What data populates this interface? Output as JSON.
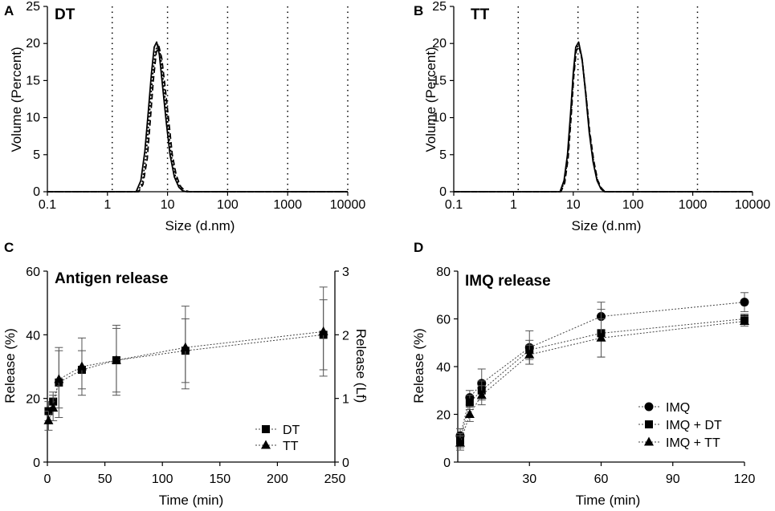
{
  "figure": {
    "panels": [
      {
        "id": "A",
        "letter": "A",
        "title": "DT"
      },
      {
        "id": "B",
        "letter": "B",
        "title": "TT"
      },
      {
        "id": "C",
        "letter": "C",
        "title": "Antigen release"
      },
      {
        "id": "D",
        "letter": "D",
        "title": "IMQ release"
      }
    ]
  },
  "chart_data": [
    {
      "panel": "A",
      "type": "line",
      "title": "DT",
      "xlabel": "Size (d.nm)",
      "ylabel": "Volume (Percent)",
      "xscale": "log",
      "xlim": [
        0.1,
        10000
      ],
      "ylim": [
        0,
        25
      ],
      "xticks": [
        0.1,
        1,
        10,
        100,
        1000,
        10000
      ],
      "xtick_labels": [
        "0.1",
        "1",
        "10",
        "100",
        "1000",
        "10000"
      ],
      "yticks": [
        0,
        5,
        10,
        15,
        20,
        25
      ],
      "ytick_labels": [
        "0",
        "5",
        "10",
        "15",
        "20",
        "25"
      ],
      "reference_lines_x": [
        1.2,
        10,
        100,
        1000,
        10000
      ],
      "series": [
        {
          "name": "DT (solid)",
          "style": "solid",
          "x": [
            0.1,
            3.0,
            3.6,
            4.2,
            4.8,
            5.4,
            6.0,
            6.6,
            7.3,
            8.2,
            9.5,
            11.0,
            13.0,
            15.5,
            18.0,
            21.0,
            10000
          ],
          "y": [
            0,
            0,
            1.5,
            5.5,
            11.0,
            16.0,
            19.5,
            20.2,
            18.5,
            14.5,
            9.5,
            5.0,
            2.0,
            0.6,
            0.1,
            0,
            0
          ]
        },
        {
          "name": "DT (dashed)",
          "style": "dashed",
          "x": [
            0.1,
            3.3,
            3.9,
            4.6,
            5.2,
            5.8,
            6.5,
            7.2,
            8.0,
            9.0,
            10.5,
            12.0,
            14.0,
            16.5,
            19.0,
            23.0,
            10000
          ],
          "y": [
            0,
            0,
            1.0,
            4.5,
            10.0,
            15.0,
            18.8,
            19.6,
            18.0,
            14.5,
            9.5,
            5.0,
            2.2,
            0.7,
            0.2,
            0,
            0
          ]
        },
        {
          "name": "DT (dotted)",
          "style": "dotted",
          "x": [
            0.1,
            3.2,
            3.8,
            4.4,
            5.0,
            5.6,
            6.3,
            7.0,
            7.7,
            8.6,
            10.0,
            11.5,
            13.5,
            16.0,
            18.5,
            22.0,
            10000
          ],
          "y": [
            0,
            0,
            1.2,
            5.0,
            10.5,
            15.5,
            19.0,
            19.9,
            18.2,
            14.5,
            9.5,
            5.0,
            2.1,
            0.6,
            0.1,
            0,
            0
          ]
        }
      ]
    },
    {
      "panel": "B",
      "type": "line",
      "title": "TT",
      "xlabel": "Size (d.nm)",
      "ylabel": "Volume (Percent)",
      "xscale": "log",
      "xlim": [
        0.1,
        10000
      ],
      "ylim": [
        0,
        25
      ],
      "xticks": [
        0.1,
        1,
        10,
        100,
        1000,
        10000
      ],
      "xtick_labels": [
        "0.1",
        "1",
        "10",
        "100",
        "1000",
        "10000"
      ],
      "yticks": [
        0,
        5,
        10,
        15,
        20,
        25
      ],
      "ytick_labels": [
        "0",
        "5",
        "10",
        "15",
        "20",
        "25"
      ],
      "reference_lines_x": [
        1.2,
        12,
        120,
        1200
      ],
      "series": [
        {
          "name": "TT (solid)",
          "style": "solid",
          "x": [
            0.1,
            6.0,
            7.0,
            8.0,
            9.0,
            10.0,
            11.0,
            12.3,
            14.0,
            16.0,
            18.5,
            21.5,
            25.0,
            29.0,
            33.0,
            10000
          ],
          "y": [
            0,
            0,
            1.5,
            5.0,
            10.5,
            16.0,
            19.5,
            20.2,
            18.0,
            13.5,
            8.0,
            4.0,
            1.5,
            0.4,
            0,
            0
          ]
        },
        {
          "name": "TT (dashed)",
          "style": "dashed",
          "x": [
            0.1,
            6.2,
            7.2,
            8.2,
            9.2,
            10.2,
            11.2,
            12.5,
            14.2,
            16.2,
            18.8,
            22.0,
            25.5,
            29.5,
            34.0,
            10000
          ],
          "y": [
            0,
            0,
            1.2,
            4.5,
            10.0,
            15.5,
            19.0,
            19.6,
            17.6,
            13.4,
            8.2,
            4.2,
            1.6,
            0.5,
            0,
            0
          ]
        },
        {
          "name": "TT (dotted)",
          "style": "dotted",
          "x": [
            0.1,
            6.1,
            7.1,
            8.1,
            9.1,
            10.1,
            11.1,
            12.4,
            14.1,
            16.1,
            18.6,
            21.8,
            25.2,
            29.2,
            33.5,
            10000
          ],
          "y": [
            0,
            0,
            1.3,
            4.8,
            10.2,
            15.8,
            19.2,
            19.9,
            17.8,
            13.4,
            8.1,
            4.1,
            1.5,
            0.4,
            0,
            0
          ]
        }
      ]
    },
    {
      "panel": "C",
      "type": "line",
      "title": "Antigen release",
      "xlabel": "Time (min)",
      "ylabel": "Release (%)",
      "y2label": "Release (Lf)",
      "xlim": [
        0,
        250
      ],
      "ylim": [
        0,
        60
      ],
      "y2lim": [
        0,
        3
      ],
      "xticks": [
        0,
        50,
        100,
        150,
        200,
        250
      ],
      "xtick_labels": [
        "0",
        "50",
        "100",
        "150",
        "200",
        "250"
      ],
      "yticks": [
        0,
        20,
        40,
        60
      ],
      "ytick_labels": [
        "0",
        "20",
        "40",
        "60"
      ],
      "y2ticks": [
        0,
        1,
        2,
        3
      ],
      "y2tick_labels": [
        "0",
        "1",
        "2",
        "3"
      ],
      "legend_position": "bottom-right",
      "series": [
        {
          "name": "DT",
          "marker": "square",
          "x": [
            1,
            5,
            10,
            30,
            60,
            120,
            240
          ],
          "y": [
            16,
            19,
            25,
            29,
            32,
            35,
            40
          ],
          "err": [
            3,
            3,
            11,
            6,
            10,
            10,
            11
          ]
        },
        {
          "name": "TT",
          "marker": "triangle",
          "x": [
            1,
            5,
            10,
            30,
            60,
            120,
            240
          ],
          "y": [
            13,
            17,
            26,
            30,
            32,
            36,
            41
          ],
          "err": [
            3,
            4,
            9,
            9,
            11,
            13,
            14
          ]
        }
      ]
    },
    {
      "panel": "D",
      "type": "line",
      "title": "IMQ release",
      "xlabel": "Time (min)",
      "ylabel": "Release (%)",
      "xlim": [
        0,
        120
      ],
      "ylim": [
        0,
        80
      ],
      "xticks": [
        30,
        60,
        90,
        120
      ],
      "xtick_labels": [
        "30",
        "60",
        "90",
        "120"
      ],
      "yticks": [
        0,
        20,
        40,
        60,
        80
      ],
      "ytick_labels": [
        "0",
        "20",
        "40",
        "60",
        "80"
      ],
      "legend_position": "bottom-right",
      "series": [
        {
          "name": "IMQ",
          "marker": "circle",
          "x": [
            1,
            5,
            10,
            30,
            60,
            120
          ],
          "y": [
            11,
            27,
            33,
            48,
            61,
            67
          ],
          "err": [
            3,
            3,
            6,
            7,
            6,
            4
          ]
        },
        {
          "name": "IMQ + DT",
          "marker": "square",
          "x": [
            1,
            5,
            10,
            30,
            60,
            120
          ],
          "y": [
            9,
            25,
            30,
            47,
            54,
            60
          ],
          "err": [
            3,
            3,
            4,
            4,
            10,
            2
          ]
        },
        {
          "name": "IMQ + TT",
          "marker": "triangle",
          "x": [
            1,
            5,
            10,
            30,
            60,
            120
          ],
          "y": [
            8,
            20,
            28,
            45,
            52,
            59
          ],
          "err": [
            3,
            3,
            4,
            4,
            8,
            2
          ]
        }
      ]
    }
  ]
}
